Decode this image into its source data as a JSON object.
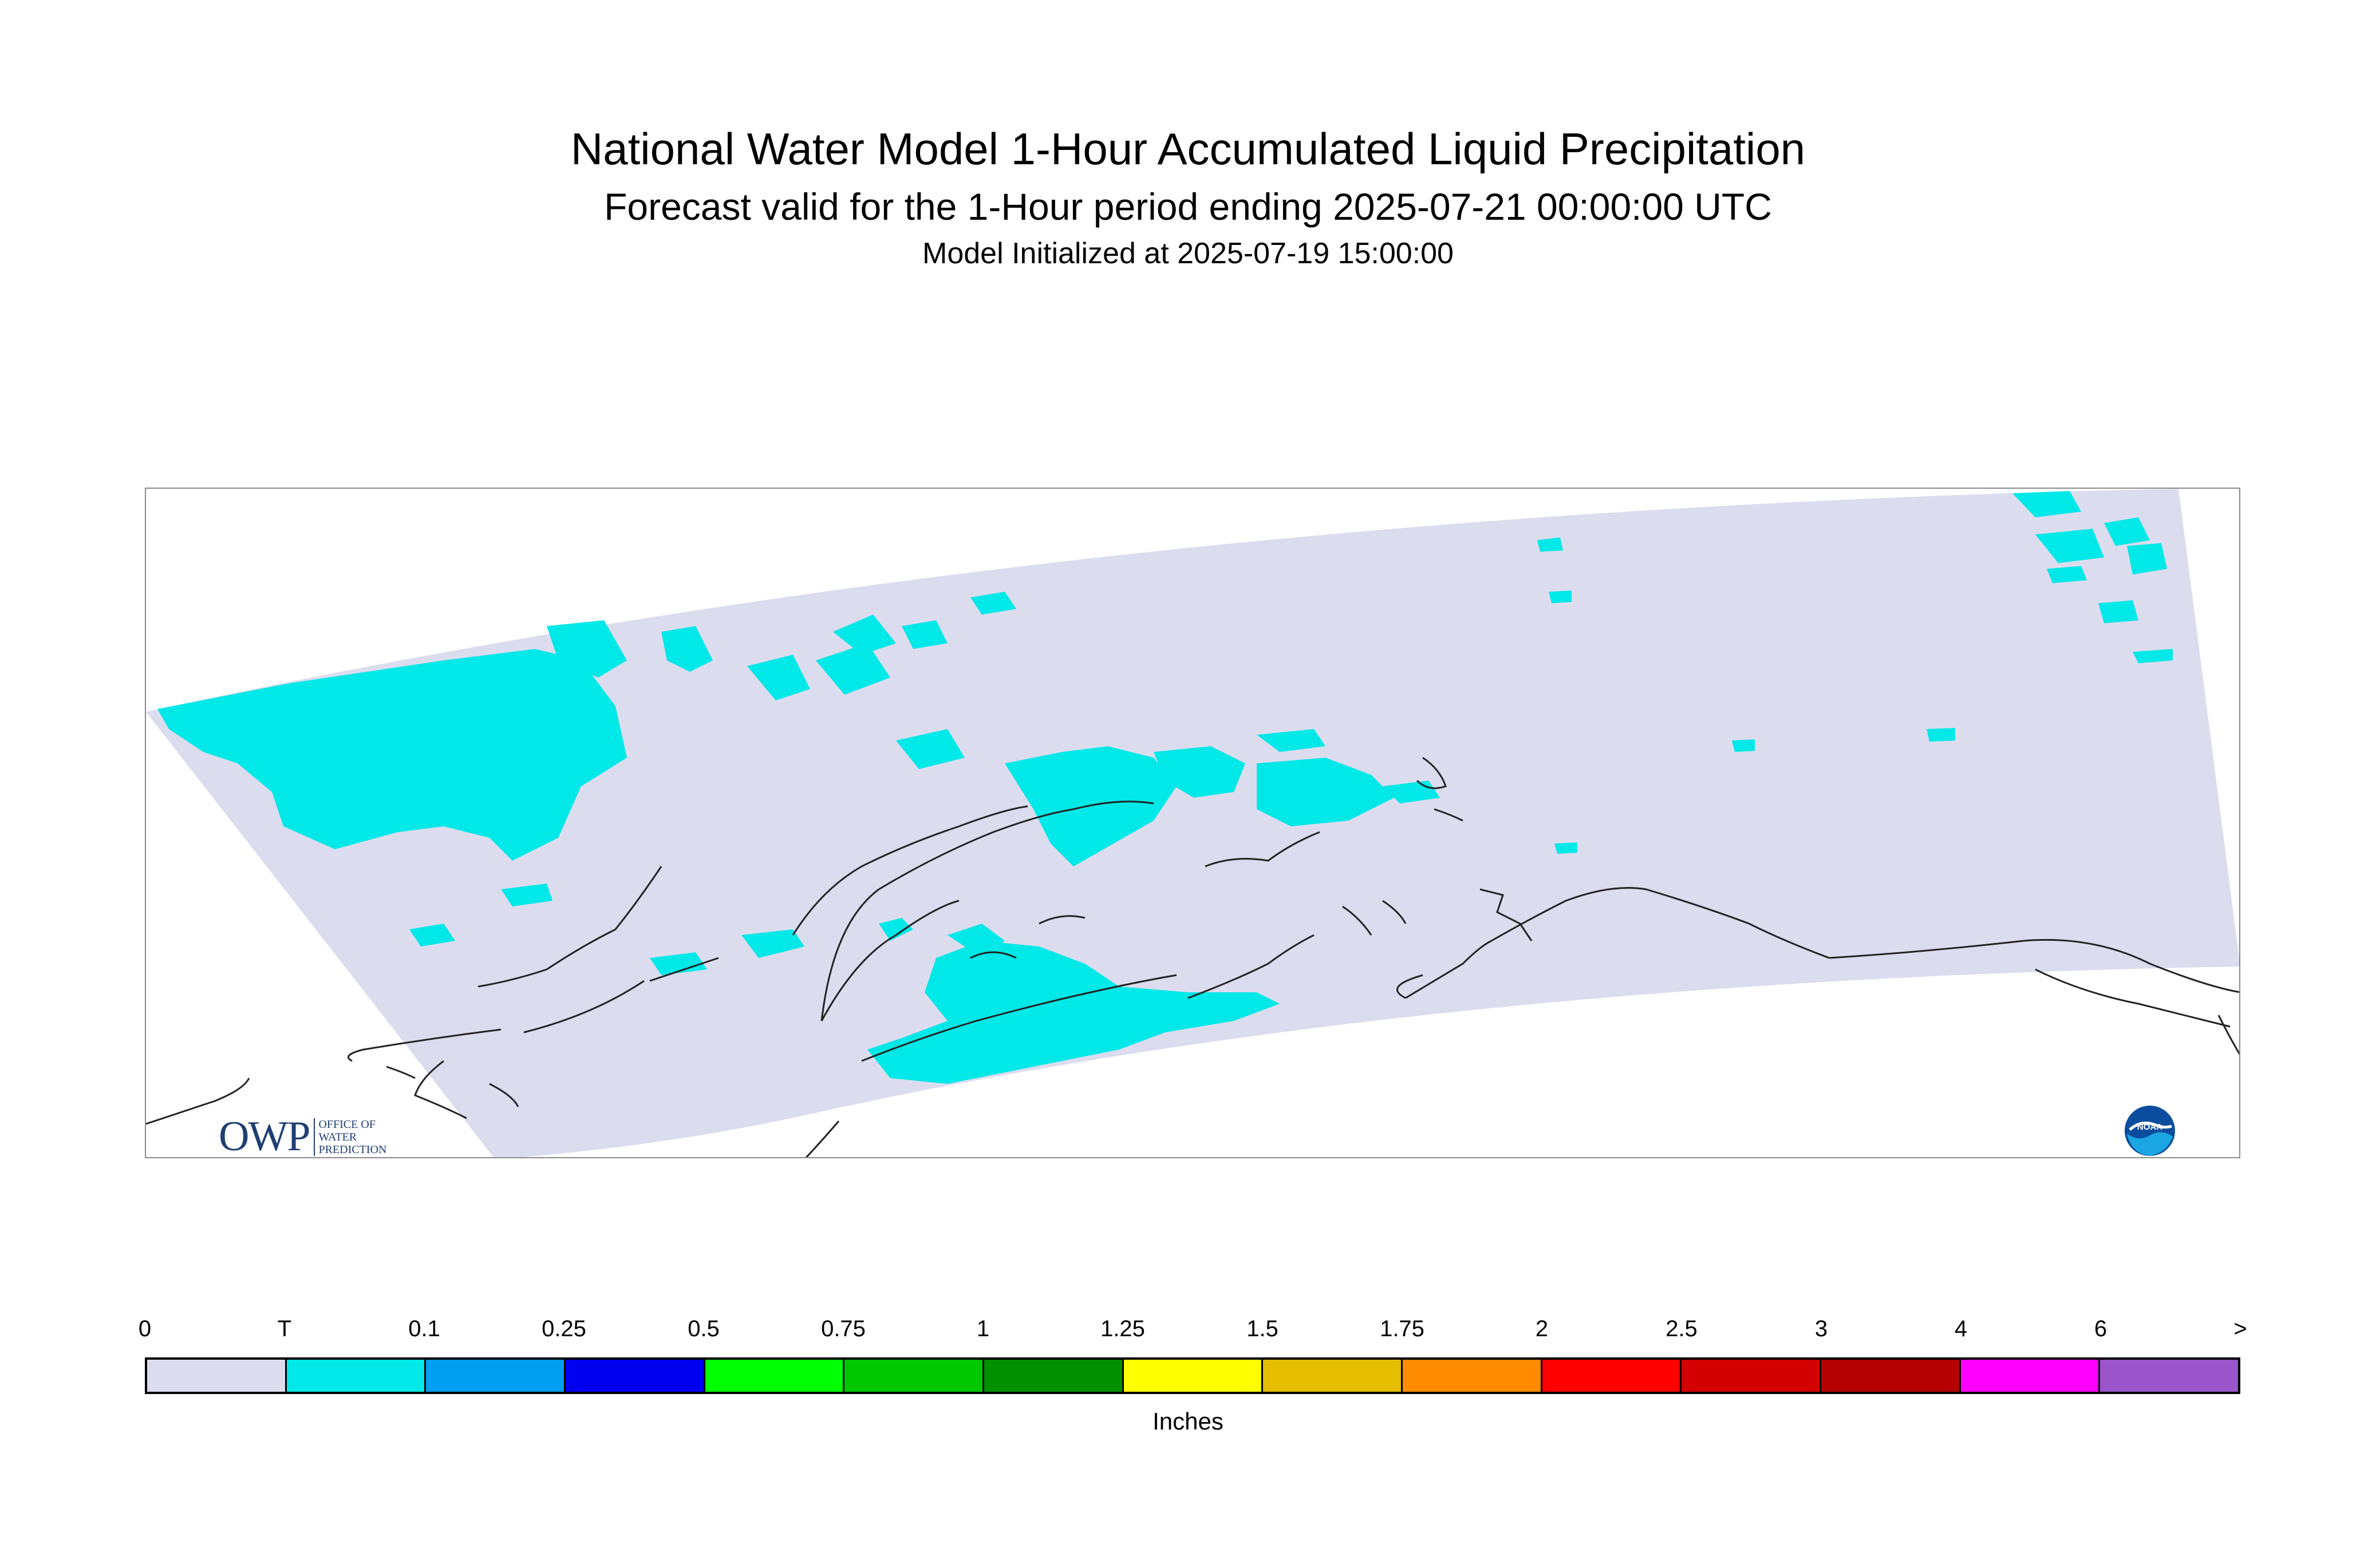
{
  "header": {
    "title": "National Water Model 1-Hour Accumulated Liquid Precipitation",
    "subtitle": "Forecast valid for the 1-Hour period ending 2025-07-21 00:00:00 UTC",
    "init": "Model Initialized at 2025-07-19 15:00:00"
  },
  "legend": {
    "labels": [
      "0",
      "T",
      "0.1",
      "0.25",
      "0.5",
      "0.75",
      "1",
      "1.25",
      "1.5",
      "1.75",
      "2",
      "2.5",
      "3",
      "4",
      "6",
      ">"
    ],
    "colors": [
      "#dcdcef",
      "#00e8e8",
      "#009ef0",
      "#0000f0",
      "#00ff00",
      "#00c800",
      "#009000",
      "#ffff00",
      "#e6be00",
      "#ff8c00",
      "#ff0000",
      "#d20000",
      "#b40000",
      "#ff00ff",
      "#9955c9"
    ],
    "units": "Inches"
  },
  "logos": {
    "owp_main": "OWP",
    "owp_small": [
      "OFFICE OF",
      "WATER",
      "PREDICTION"
    ],
    "noaa": "NOAA"
  },
  "map": {
    "domain_color": "#dcdcef",
    "trace_color": "#00e8e8",
    "coast_color": "#222222"
  }
}
